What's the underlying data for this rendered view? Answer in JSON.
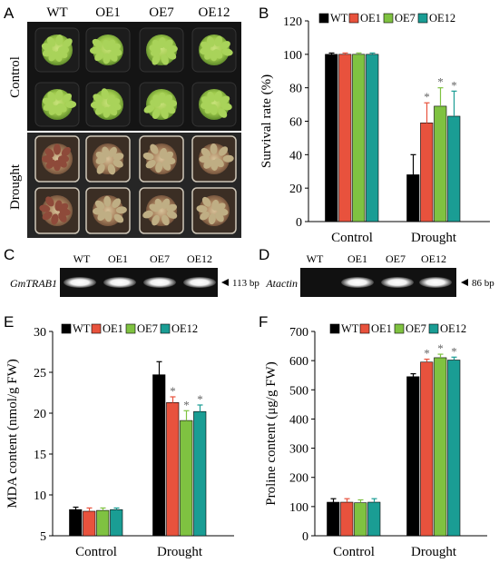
{
  "panel_letters": {
    "a": "A",
    "b": "B",
    "c": "C",
    "d": "D",
    "e": "E",
    "f": "F"
  },
  "series_colors": {
    "WT": "#000000",
    "OE1": "#e8523d",
    "OE7": "#7fc241",
    "OE12": "#1a9d94"
  },
  "photo_panel": {
    "columns": [
      "WT",
      "OE1",
      "OE7",
      "OE12"
    ],
    "row_labels": [
      "Control",
      "Drought"
    ]
  },
  "gel_c": {
    "columns": [
      "WT",
      "OE1",
      "OE7",
      "OE12"
    ],
    "gene": "GmTRAB1",
    "size": "113 bp",
    "band_present": [
      true,
      true,
      true,
      true
    ]
  },
  "gel_d": {
    "columns": [
      "WT",
      "OE1",
      "OE7",
      "OE12"
    ],
    "gene": "Atactin",
    "size": "86 bp",
    "band_present": [
      false,
      true,
      true,
      true
    ]
  },
  "chart_data": [
    {
      "id": "B",
      "type": "bar",
      "categories": [
        "Control",
        "Drought"
      ],
      "series": [
        {
          "name": "WT",
          "values": [
            100,
            28
          ],
          "errors": [
            0.8,
            12
          ]
        },
        {
          "name": "OE1",
          "values": [
            100,
            59
          ],
          "errors": [
            0.8,
            12
          ]
        },
        {
          "name": "OE7",
          "values": [
            100,
            69
          ],
          "errors": [
            0.8,
            11
          ]
        },
        {
          "name": "OE12",
          "values": [
            100,
            63
          ],
          "errors": [
            0.8,
            15
          ]
        }
      ],
      "significance": [
        [
          false,
          false
        ],
        [
          false,
          true
        ],
        [
          false,
          true
        ],
        [
          false,
          true
        ]
      ],
      "marker": "*",
      "ylabel": "Survival rate (%)",
      "ylim": [
        0,
        120
      ],
      "yticks": [
        0,
        20,
        40,
        60,
        80,
        100,
        120
      ],
      "legend": "top"
    },
    {
      "id": "E",
      "type": "bar",
      "categories": [
        "Control",
        "Drought"
      ],
      "series": [
        {
          "name": "WT",
          "values": [
            8.2,
            24.7
          ],
          "errors": [
            0.3,
            1.6
          ]
        },
        {
          "name": "OE1",
          "values": [
            8.0,
            21.3
          ],
          "errors": [
            0.4,
            0.7
          ]
        },
        {
          "name": "OE7",
          "values": [
            8.1,
            19.1
          ],
          "errors": [
            0.3,
            1.2
          ]
        },
        {
          "name": "OE12",
          "values": [
            8.2,
            20.2
          ],
          "errors": [
            0.2,
            0.8
          ]
        }
      ],
      "significance": [
        [
          false,
          false
        ],
        [
          false,
          true
        ],
        [
          false,
          true
        ],
        [
          false,
          true
        ]
      ],
      "marker": "*",
      "ylabel": "MDA content (nmol/g FW)",
      "ylim": [
        5,
        30
      ],
      "yticks": [
        5,
        10,
        15,
        20,
        25,
        30
      ],
      "legend": "top"
    },
    {
      "id": "F",
      "type": "bar",
      "categories": [
        "Control",
        "Drought"
      ],
      "series": [
        {
          "name": "WT",
          "values": [
            115,
            545
          ],
          "errors": [
            12,
            10
          ]
        },
        {
          "name": "OE1",
          "values": [
            115,
            595
          ],
          "errors": [
            12,
            10
          ]
        },
        {
          "name": "OE7",
          "values": [
            113,
            610
          ],
          "errors": [
            10,
            12
          ]
        },
        {
          "name": "OE12",
          "values": [
            115,
            602
          ],
          "errors": [
            12,
            10
          ]
        }
      ],
      "significance": [
        [
          false,
          false
        ],
        [
          false,
          true
        ],
        [
          false,
          true
        ],
        [
          false,
          true
        ]
      ],
      "marker": "*",
      "ylabel": "Proline content (μg/g FW)",
      "ylim": [
        0,
        700
      ],
      "yticks": [
        0,
        100,
        200,
        300,
        400,
        500,
        600,
        700
      ],
      "legend": "top"
    }
  ]
}
